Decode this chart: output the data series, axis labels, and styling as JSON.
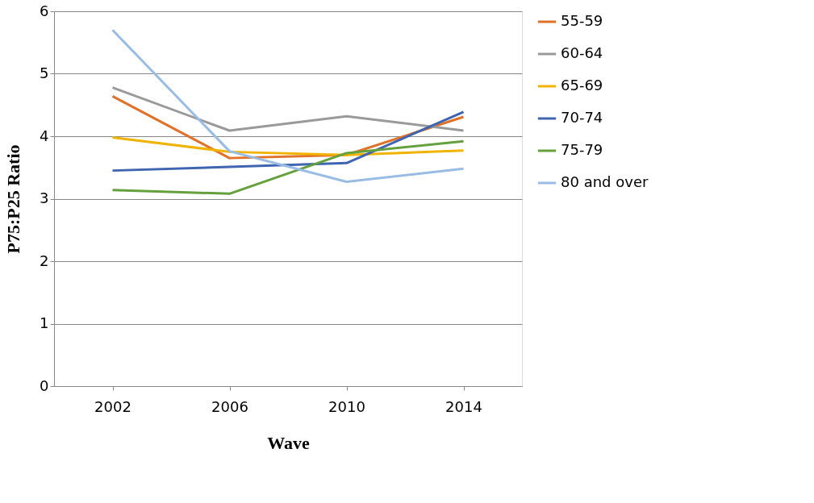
{
  "chart_data": {
    "type": "line",
    "xlabel": "Wave",
    "ylabel": "P75:P25 Ratio",
    "categories": [
      "2002",
      "2006",
      "2010",
      "2014"
    ],
    "series": [
      {
        "name": "55-59",
        "color": "#e07128",
        "values": [
          4.64,
          3.65,
          3.7,
          4.31
        ]
      },
      {
        "name": "60-64",
        "color": "#9a9a9a",
        "values": [
          4.78,
          4.09,
          4.32,
          4.09
        ]
      },
      {
        "name": "65-69",
        "color": "#f0b400",
        "values": [
          3.98,
          3.75,
          3.7,
          3.77
        ]
      },
      {
        "name": "70-74",
        "color": "#3f64b0",
        "values": [
          3.45,
          3.51,
          3.57,
          4.39
        ]
      },
      {
        "name": "75-79",
        "color": "#64a03c",
        "values": [
          3.14,
          3.08,
          3.73,
          3.92
        ]
      },
      {
        "name": "80 and over",
        "color": "#99bce4",
        "values": [
          5.7,
          3.76,
          3.27,
          3.48
        ]
      }
    ],
    "ylim": [
      0,
      6
    ],
    "yticks": [
      0,
      1,
      2,
      3,
      4,
      5,
      6
    ],
    "grid": "y",
    "legend": "right",
    "marker": "none",
    "line_style": "solid"
  }
}
